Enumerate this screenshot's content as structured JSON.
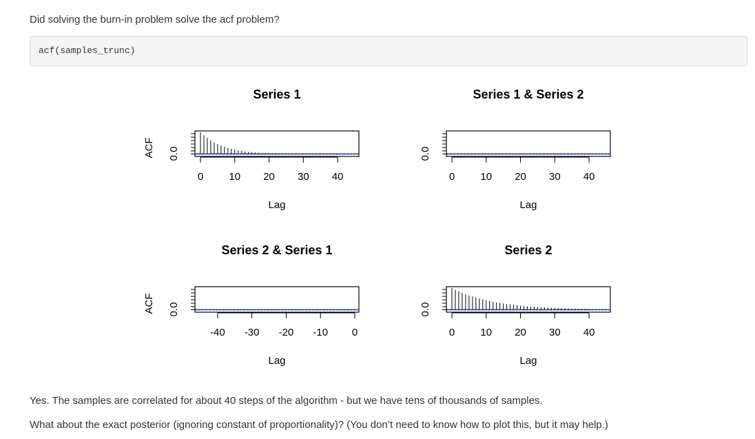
{
  "intro_text": "Did solving the burn-in problem solve the acf problem?",
  "code": "acf(samples_trunc)",
  "paragraphs": [
    "Yes. The samples are correlated for about 40 steps of the algorithm - but we have tens of thousands of samples.",
    "What about the exact posterior (ignoring constant of proportionality)? (You don’t need to know how to plot this, but it may help.)"
  ],
  "chart_data": [
    {
      "type": "bar",
      "title": "Series 1",
      "xlabel": "Lag",
      "ylabel": "ACF",
      "xlim": [
        0,
        45
      ],
      "ylim": [
        -0.05,
        1.0
      ],
      "xticks": [
        0,
        10,
        20,
        30,
        40
      ],
      "yticks": [
        0.0
      ],
      "ytick_labels": [
        "0.0"
      ],
      "x": [
        0,
        1,
        2,
        3,
        4,
        5,
        6,
        7,
        8,
        9,
        10,
        11,
        12,
        13,
        14,
        15,
        16,
        17,
        18,
        19,
        20,
        21,
        22,
        23,
        24,
        25,
        26,
        27,
        28,
        29,
        30,
        31,
        32,
        33,
        34,
        35,
        36,
        37,
        38,
        39,
        40
      ],
      "values": [
        1.0,
        0.86,
        0.74,
        0.63,
        0.54,
        0.46,
        0.39,
        0.33,
        0.28,
        0.24,
        0.2,
        0.17,
        0.15,
        0.12,
        0.1,
        0.09,
        0.07,
        0.06,
        0.05,
        0.04,
        0.04,
        0.03,
        0.03,
        0.02,
        0.02,
        0.02,
        0.01,
        0.01,
        0.01,
        0.01,
        0.01,
        0.0,
        0.0,
        0.0,
        0.0,
        0.0,
        0.0,
        0.0,
        0.0,
        0.0,
        0.0
      ],
      "ci": 0.02
    },
    {
      "type": "bar",
      "title": "Series 1 & Series 2",
      "xlabel": "Lag",
      "ylabel": "",
      "xlim": [
        0,
        45
      ],
      "ylim": [
        -0.05,
        1.0
      ],
      "xticks": [
        0,
        10,
        20,
        30,
        40
      ],
      "yticks": [
        0.0
      ],
      "ytick_labels": [
        "0.0"
      ],
      "x": [
        0,
        1,
        2,
        3,
        4,
        5,
        6,
        7,
        8,
        9,
        10,
        11,
        12,
        13,
        14,
        15,
        16,
        17,
        18,
        19,
        20,
        21,
        22,
        23,
        24,
        25,
        26,
        27,
        28,
        29,
        30,
        31,
        32,
        33,
        34,
        35,
        36,
        37,
        38,
        39,
        40
      ],
      "values": [
        0.01,
        0.01,
        0.01,
        0.01,
        0.01,
        0.01,
        0.01,
        0.01,
        0.01,
        0.01,
        0.01,
        0.01,
        0.01,
        0.01,
        0.01,
        0.01,
        0.01,
        0.01,
        0.01,
        0.01,
        0.01,
        0.01,
        0.01,
        0.01,
        0.01,
        0.01,
        0.01,
        0.01,
        0.01,
        0.01,
        0.01,
        0.01,
        0.01,
        0.01,
        0.01,
        0.01,
        0.01,
        0.01,
        0.01,
        0.01,
        0.01
      ],
      "ci": 0.02
    },
    {
      "type": "bar",
      "title": "Series 2 & Series 1",
      "xlabel": "Lag",
      "ylabel": "ACF",
      "xlim": [
        -45,
        0
      ],
      "ylim": [
        -0.05,
        1.0
      ],
      "xticks": [
        -40,
        -30,
        -20,
        -10,
        0
      ],
      "yticks": [
        0.0
      ],
      "ytick_labels": [
        "0.0"
      ],
      "x": [
        -40,
        -39,
        -38,
        -37,
        -36,
        -35,
        -34,
        -33,
        -32,
        -31,
        -30,
        -29,
        -28,
        -27,
        -26,
        -25,
        -24,
        -23,
        -22,
        -21,
        -20,
        -19,
        -18,
        -17,
        -16,
        -15,
        -14,
        -13,
        -12,
        -11,
        -10,
        -9,
        -8,
        -7,
        -6,
        -5,
        -4,
        -3,
        -2,
        -1,
        0
      ],
      "values": [
        0.01,
        0.01,
        0.01,
        0.01,
        0.01,
        0.01,
        0.01,
        0.01,
        0.01,
        0.01,
        0.01,
        0.01,
        0.01,
        0.01,
        0.01,
        0.01,
        0.01,
        0.01,
        0.01,
        0.01,
        0.01,
        0.01,
        0.01,
        0.01,
        0.01,
        0.01,
        0.01,
        0.01,
        0.01,
        0.01,
        0.01,
        0.01,
        0.01,
        0.01,
        0.01,
        0.01,
        0.01,
        0.01,
        0.01,
        0.01,
        0.01
      ],
      "ci": 0.02
    },
    {
      "type": "bar",
      "title": "Series 2",
      "xlabel": "Lag",
      "ylabel": "",
      "xlim": [
        0,
        45
      ],
      "ylim": [
        -0.05,
        1.0
      ],
      "xticks": [
        0,
        10,
        20,
        30,
        40
      ],
      "yticks": [
        0.0
      ],
      "ytick_labels": [
        "0.0"
      ],
      "x": [
        0,
        1,
        2,
        3,
        4,
        5,
        6,
        7,
        8,
        9,
        10,
        11,
        12,
        13,
        14,
        15,
        16,
        17,
        18,
        19,
        20,
        21,
        22,
        23,
        24,
        25,
        26,
        27,
        28,
        29,
        30,
        31,
        32,
        33,
        34,
        35,
        36,
        37,
        38,
        39,
        40
      ],
      "values": [
        1.0,
        0.92,
        0.85,
        0.78,
        0.72,
        0.66,
        0.61,
        0.56,
        0.52,
        0.48,
        0.44,
        0.41,
        0.37,
        0.34,
        0.32,
        0.29,
        0.27,
        0.25,
        0.23,
        0.21,
        0.19,
        0.18,
        0.16,
        0.15,
        0.14,
        0.13,
        0.12,
        0.11,
        0.1,
        0.09,
        0.08,
        0.07,
        0.07,
        0.06,
        0.06,
        0.05,
        0.05,
        0.04,
        0.04,
        0.04,
        0.03
      ],
      "ci": 0.02
    }
  ]
}
